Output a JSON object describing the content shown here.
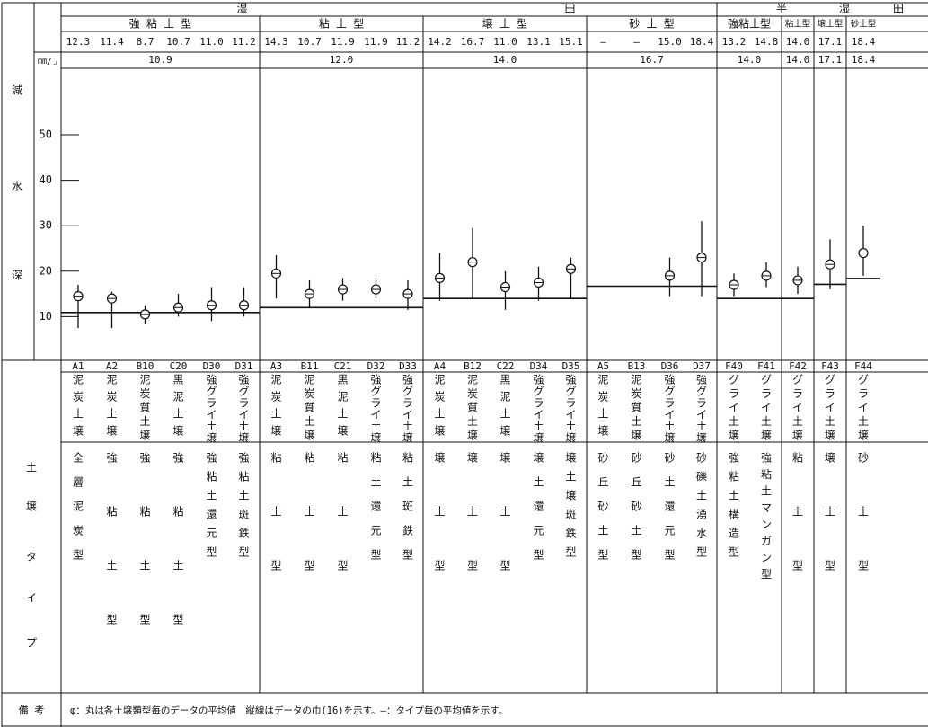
{
  "headers": {
    "wet": "湿",
    "field": "田",
    "semi": "半",
    "semi_wet": "湿",
    "semi_field": "田",
    "unit": "㎜/⌟",
    "left_label_chars": [
      "減",
      "水",
      "深"
    ],
    "soil_type_chars": [
      "土",
      "壌",
      "タ",
      "イ",
      "プ"
    ]
  },
  "groups": [
    {
      "label": "強 粘 土 型",
      "mean": "10.9"
    },
    {
      "label": "粘 土 型",
      "mean": "12.0"
    },
    {
      "label": "壌 土 型",
      "mean": "14.0"
    },
    {
      "label": "砂 土 型",
      "mean": "16.7"
    },
    {
      "label": "強粘土型",
      "mean": "14.0"
    },
    {
      "label": "粘土型",
      "mean": "14.0"
    },
    {
      "label": "壌土型",
      "mean": "17.1"
    },
    {
      "label": "砂土型",
      "mean": "18.4"
    }
  ],
  "columns": [
    {
      "code": "A1",
      "value": "12.3",
      "t1": [
        "泥",
        "炭",
        "土",
        "壌"
      ],
      "t2": [
        "全",
        "層",
        "泥",
        "炭",
        "型"
      ]
    },
    {
      "code": "A2",
      "value": "11.4",
      "t1": [
        "泥",
        "炭",
        "土",
        "壌"
      ],
      "t2": [
        "強",
        "粘",
        "土",
        "型"
      ]
    },
    {
      "code": "B10",
      "value": "8.7",
      "t1": [
        "泥",
        "炭",
        "質",
        "土",
        "壌"
      ],
      "t2": [
        "強",
        "粘",
        "土",
        "型"
      ]
    },
    {
      "code": "C20",
      "value": "10.7",
      "t1": [
        "黒",
        "泥",
        "土",
        "壌"
      ],
      "t2": [
        "強",
        "粘",
        "土",
        "型"
      ]
    },
    {
      "code": "D30",
      "value": "11.0",
      "t1": [
        "強",
        "グ",
        "ラ",
        "イ",
        "土",
        "壌"
      ],
      "t2": [
        "強",
        "粘",
        "土",
        "還",
        "元",
        "型"
      ]
    },
    {
      "code": "D31",
      "value": "11.2",
      "t1": [
        "強",
        "グ",
        "ラ",
        "イ",
        "土",
        "壌"
      ],
      "t2": [
        "強",
        "粘",
        "土",
        "斑",
        "鉄",
        "型"
      ]
    },
    {
      "code": "A3",
      "value": "14.3",
      "t1": [
        "泥",
        "炭",
        "土",
        "壌"
      ],
      "t2": [
        "粘",
        "土",
        "型"
      ]
    },
    {
      "code": "B11",
      "value": "10.7",
      "t1": [
        "泥",
        "炭",
        "質",
        "土",
        "壌"
      ],
      "t2": [
        "粘",
        "土",
        "型"
      ]
    },
    {
      "code": "C21",
      "value": "11.9",
      "t1": [
        "黒",
        "泥",
        "土",
        "壌"
      ],
      "t2": [
        "粘",
        "土",
        "型"
      ]
    },
    {
      "code": "D32",
      "value": "11.9",
      "t1": [
        "強",
        "グ",
        "ラ",
        "イ",
        "土",
        "壌"
      ],
      "t2": [
        "粘",
        "土",
        "還",
        "元",
        "型"
      ]
    },
    {
      "code": "D33",
      "value": "11.2",
      "t1": [
        "強",
        "グ",
        "ラ",
        "イ",
        "土",
        "壌"
      ],
      "t2": [
        "粘",
        "土",
        "斑",
        "鉄",
        "型"
      ]
    },
    {
      "code": "A4",
      "value": "14.2",
      "t1": [
        "泥",
        "炭",
        "土",
        "壌"
      ],
      "t2": [
        "壌",
        "土",
        "型"
      ]
    },
    {
      "code": "B12",
      "value": "16.7",
      "t1": [
        "泥",
        "炭",
        "質",
        "土",
        "壌"
      ],
      "t2": [
        "壌",
        "土",
        "型"
      ]
    },
    {
      "code": "C22",
      "value": "11.0",
      "t1": [
        "黒",
        "泥",
        "土",
        "壌"
      ],
      "t2": [
        "壌",
        "土",
        "型"
      ]
    },
    {
      "code": "D34",
      "value": "13.1",
      "t1": [
        "強",
        "グ",
        "ラ",
        "イ",
        "土",
        "壌"
      ],
      "t2": [
        "壌",
        "土",
        "還",
        "元",
        "型"
      ]
    },
    {
      "code": "D35",
      "value": "15.1",
      "t1": [
        "強",
        "グ",
        "ラ",
        "イ",
        "土",
        "壌"
      ],
      "t2": [
        "壌",
        "土",
        "壌",
        "斑",
        "鉄",
        "型"
      ]
    },
    {
      "code": "A5",
      "value": "—",
      "t1": [
        "泥",
        "炭",
        "土",
        "壌"
      ],
      "t2": [
        "砂",
        "丘",
        "砂",
        "土",
        "型"
      ]
    },
    {
      "code": "B13",
      "value": "—",
      "t1": [
        "泥",
        "炭",
        "質",
        "土",
        "壌"
      ],
      "t2": [
        "砂",
        "丘",
        "砂",
        "土",
        "型"
      ]
    },
    {
      "code": "D36",
      "value": "15.0",
      "t1": [
        "強",
        "グ",
        "ラ",
        "イ",
        "土",
        "壌"
      ],
      "t2": [
        "砂",
        "土",
        "還",
        "元",
        "型"
      ]
    },
    {
      "code": "D37",
      "value": "18.4",
      "t1": [
        "強",
        "グ",
        "ラ",
        "イ",
        "土",
        "壌"
      ],
      "t2": [
        "砂",
        "礫",
        "土",
        "湧",
        "水",
        "型"
      ]
    },
    {
      "code": "F40",
      "value": "13.2",
      "t1": [
        "グ",
        "ラ",
        "イ",
        "土",
        "壌"
      ],
      "t2": [
        "強",
        "粘",
        "土",
        "構",
        "造",
        "型"
      ]
    },
    {
      "code": "F41",
      "value": "14.8",
      "t1": [
        "グ",
        "ラ",
        "イ",
        "土",
        "壌"
      ],
      "t2": [
        "強",
        "粘",
        "土",
        "マ",
        "ン",
        "ガ",
        "ン",
        "型"
      ]
    },
    {
      "code": "F42",
      "value": "14.0",
      "t1": [
        "グ",
        "ラ",
        "イ",
        "土",
        "壌"
      ],
      "t2": [
        "粘",
        "土",
        "型"
      ]
    },
    {
      "code": "F43",
      "value": "17.1",
      "t1": [
        "グ",
        "ラ",
        "イ",
        "土",
        "壌"
      ],
      "t2": [
        "壌",
        "土",
        "型"
      ]
    },
    {
      "code": "F44",
      "value": "18.4",
      "t1": [
        "グ",
        "ラ",
        "イ",
        "土",
        "壌"
      ],
      "t2": [
        "砂",
        "土",
        "型"
      ]
    }
  ],
  "chart_data": {
    "type": "scatter",
    "title": "",
    "ylabel": "減水深",
    "yunit": "㎜/⌟",
    "ylim": [
      0,
      55
    ],
    "yticks": [
      "50",
      "40",
      "30",
      "20",
      "10"
    ],
    "grid": false,
    "points": [
      {
        "x": "A1",
        "y": 14.5,
        "low": 7.5,
        "high": 17.0
      },
      {
        "x": "A2",
        "y": 14.0,
        "low": 7.5,
        "high": 15.5
      },
      {
        "x": "B10",
        "y": 10.5,
        "low": 8.5,
        "high": 12.5
      },
      {
        "x": "C20",
        "y": 12.0,
        "low": 10.0,
        "high": 15.0
      },
      {
        "x": "D30",
        "y": 12.5,
        "low": 9.0,
        "high": 16.5
      },
      {
        "x": "D31",
        "y": 12.5,
        "low": 10.0,
        "high": 16.5
      },
      {
        "x": "A3",
        "y": 19.5,
        "low": 14.0,
        "high": 23.5
      },
      {
        "x": "B11",
        "y": 15.0,
        "low": 12.0,
        "high": 18.0
      },
      {
        "x": "C21",
        "y": 16.0,
        "low": 13.5,
        "high": 18.5
      },
      {
        "x": "D32",
        "y": 16.0,
        "low": 14.0,
        "high": 18.5
      },
      {
        "x": "D33",
        "y": 15.0,
        "low": 11.5,
        "high": 18.0
      },
      {
        "x": "A4",
        "y": 18.5,
        "low": 13.5,
        "high": 24.0
      },
      {
        "x": "B12",
        "y": 22.0,
        "low": 14.0,
        "high": 29.5
      },
      {
        "x": "C22",
        "y": 16.5,
        "low": 11.5,
        "high": 20.0
      },
      {
        "x": "D34",
        "y": 17.5,
        "low": 13.5,
        "high": 21.0
      },
      {
        "x": "D35",
        "y": 20.5,
        "low": 14.0,
        "high": 23.0
      },
      {
        "x": "D36",
        "y": 19.0,
        "low": 14.5,
        "high": 23.0
      },
      {
        "x": "D37",
        "y": 23.0,
        "low": 14.5,
        "high": 31.0
      },
      {
        "x": "F40",
        "y": 17.0,
        "low": 14.5,
        "high": 19.5
      },
      {
        "x": "F41",
        "y": 19.0,
        "low": 16.5,
        "high": 22.0
      },
      {
        "x": "F42",
        "y": 18.0,
        "low": 15.0,
        "high": 21.0
      },
      {
        "x": "F43",
        "y": 21.5,
        "low": 16.0,
        "high": 27.0
      },
      {
        "x": "F44",
        "y": 24.0,
        "low": 19.0,
        "high": 30.0
      }
    ],
    "group_means": [
      {
        "group": "強 粘 土 型",
        "value": 10.9
      },
      {
        "group": "粘 土 型",
        "value": 12.0
      },
      {
        "group": "壌 土 型",
        "value": 14.0
      },
      {
        "group": "砂 土 型",
        "value": 16.7
      },
      {
        "group": "強粘土型",
        "value": 14.0
      },
      {
        "group": "粘土型",
        "value": 14.0
      },
      {
        "group": "壌土型",
        "value": 17.1
      },
      {
        "group": "砂土型",
        "value": 18.4
      }
    ]
  },
  "note": {
    "label": "備 考",
    "text": "φ：丸は各土壌類型毎のデータの平均値　縦線はデータの巾(16)を示す。—：タイプ毎の平均値を示す。"
  }
}
